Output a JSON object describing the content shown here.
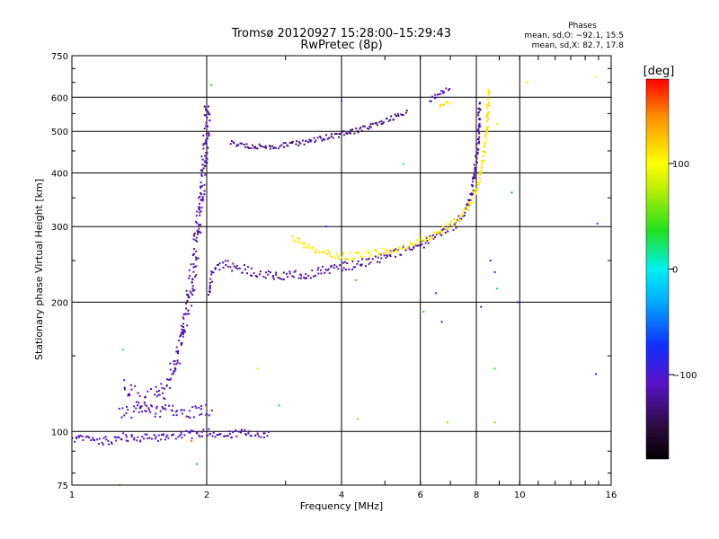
{
  "chart_data": {
    "type": "scatter",
    "title": "Tromsø 20120927 15:28:00–15:29:43",
    "subtitle": "RwPretec (8p)",
    "xlabel": "Frequency [MHz]",
    "ylabel": "Stationary phase Virtual Height [km]",
    "x_scale": "log",
    "y_scale": "log",
    "xlim": [
      1,
      16
    ],
    "ylim": [
      75,
      750
    ],
    "x_ticks": [
      1,
      2,
      4,
      6,
      8,
      10,
      16
    ],
    "x_tick_labels": [
      "1",
      "2",
      "4",
      "6",
      "8",
      "10",
      "16"
    ],
    "y_ticks": [
      75,
      100,
      200,
      300,
      400,
      500,
      600,
      750
    ],
    "y_tick_labels": [
      "75",
      "100",
      "200",
      "300",
      "400",
      "500",
      "600",
      "750"
    ],
    "grid": true,
    "stats": {
      "heading": "Phases",
      "line_o": "mean, sd,O: −92.1, 15.5",
      "line_x": "mean, sd,X:  82.7, 17.8"
    },
    "colorbar": {
      "label": "[deg]",
      "min": -180,
      "max": 180,
      "ticks": [
        100,
        0,
        -100
      ],
      "tick_labels": [
        "100",
        "0",
        "−100"
      ]
    },
    "series": [
      {
        "trace": [
          [
            1.0,
            96
          ],
          [
            1.1,
            96
          ],
          [
            1.2,
            95
          ],
          [
            1.3,
            97
          ],
          [
            1.4,
            96
          ],
          [
            1.5,
            97
          ],
          [
            1.6,
            97
          ],
          [
            1.7,
            98
          ],
          [
            1.8,
            99
          ],
          [
            1.9,
            98
          ],
          [
            2.0,
            100
          ],
          [
            2.1,
            99
          ],
          [
            2.2,
            98
          ],
          [
            2.4,
            99
          ],
          [
            2.6,
            98
          ],
          [
            2.75,
            99
          ]
        ],
        "phase": -105,
        "spread": 0.02
      },
      {
        "trace": [
          [
            1.28,
            110
          ],
          [
            1.4,
            112
          ],
          [
            1.55,
            111
          ],
          [
            1.7,
            112
          ],
          [
            1.85,
            111
          ],
          [
            1.95,
            113
          ],
          [
            2.05,
            112
          ]
        ],
        "phase": -100,
        "spread": 0.03
      },
      {
        "trace": [
          [
            1.3,
            127
          ],
          [
            1.38,
            121
          ],
          [
            1.45,
            118
          ],
          [
            1.52,
            119
          ],
          [
            1.6,
            124
          ],
          [
            1.67,
            135
          ],
          [
            1.72,
            150
          ],
          [
            1.78,
            175
          ],
          [
            1.83,
            205
          ],
          [
            1.87,
            240
          ],
          [
            1.91,
            290
          ],
          [
            1.94,
            340
          ],
          [
            1.97,
            400
          ],
          [
            1.99,
            460
          ],
          [
            2.0,
            510
          ],
          [
            2.01,
            580
          ]
        ],
        "phase": -115,
        "spread": 0.05
      },
      {
        "trace": [
          [
            2.02,
            210
          ],
          [
            2.05,
            230
          ],
          [
            2.1,
            240
          ],
          [
            2.2,
            245
          ],
          [
            2.3,
            242
          ],
          [
            2.5,
            236
          ],
          [
            2.8,
            232
          ],
          [
            3.0,
            230
          ],
          [
            3.3,
            232
          ],
          [
            3.6,
            236
          ],
          [
            4.0,
            242
          ],
          [
            4.4,
            246
          ],
          [
            4.8,
            252
          ],
          [
            5.2,
            258
          ],
          [
            5.6,
            265
          ],
          [
            6.0,
            272
          ],
          [
            6.4,
            280
          ],
          [
            6.8,
            290
          ],
          [
            7.2,
            305
          ],
          [
            7.5,
            320
          ],
          [
            7.7,
            340
          ],
          [
            7.85,
            370
          ],
          [
            7.95,
            410
          ],
          [
            8.05,
            460
          ],
          [
            8.12,
            520
          ],
          [
            8.15,
            590
          ]
        ],
        "phase": -118,
        "spread": 0.022
      },
      {
        "trace": [
          [
            3.1,
            285
          ],
          [
            3.3,
            272
          ],
          [
            3.5,
            262
          ],
          [
            3.8,
            258
          ],
          [
            4.2,
            256
          ],
          [
            4.7,
            260
          ],
          [
            5.2,
            265
          ],
          [
            5.8,
            273
          ],
          [
            6.3,
            283
          ],
          [
            6.8,
            296
          ],
          [
            7.3,
            312
          ],
          [
            7.7,
            335
          ],
          [
            8.0,
            365
          ],
          [
            8.2,
            400
          ],
          [
            8.35,
            450
          ],
          [
            8.45,
            510
          ],
          [
            8.5,
            580
          ],
          [
            8.55,
            630
          ]
        ],
        "phase": 108,
        "spread": 0.018
      },
      {
        "trace": [
          [
            2.25,
            470
          ],
          [
            2.5,
            462
          ],
          [
            2.8,
            460
          ],
          [
            3.1,
            466
          ],
          [
            3.4,
            475
          ],
          [
            3.8,
            487
          ],
          [
            4.2,
            498
          ],
          [
            4.6,
            512
          ],
          [
            5.0,
            528
          ],
          [
            5.4,
            548
          ],
          [
            5.6,
            556
          ]
        ],
        "phase": -128,
        "spread": 0.012
      },
      {
        "trace": [
          [
            6.3,
            590
          ],
          [
            6.5,
            605
          ],
          [
            6.8,
            620
          ],
          [
            7.0,
            630
          ]
        ],
        "phase": -105,
        "spread": 0.015
      },
      {
        "trace": [
          [
            6.6,
            575
          ],
          [
            6.8,
            580
          ],
          [
            7.0,
            585
          ]
        ],
        "phase": 110,
        "spread": 0.012
      }
    ],
    "outliers": [
      [
        1.3,
        155,
        30
      ],
      [
        1.28,
        75,
        60
      ],
      [
        1.85,
        95,
        150
      ],
      [
        1.9,
        84,
        -30
      ],
      [
        2.05,
        640,
        40
      ],
      [
        2.6,
        140,
        90
      ],
      [
        2.9,
        115,
        30
      ],
      [
        3.7,
        300,
        -100
      ],
      [
        4.0,
        590,
        -60
      ],
      [
        4.3,
        225,
        40
      ],
      [
        4.35,
        107,
        60
      ],
      [
        5.5,
        420,
        10
      ],
      [
        6.1,
        190,
        40
      ],
      [
        6.5,
        210,
        -90
      ],
      [
        6.7,
        180,
        -110
      ],
      [
        6.9,
        105,
        60
      ],
      [
        8.2,
        195,
        -120
      ],
      [
        8.6,
        250,
        -100
      ],
      [
        8.8,
        235,
        -80
      ],
      [
        8.9,
        215,
        30
      ],
      [
        8.8,
        140,
        40
      ],
      [
        8.8,
        105,
        60
      ],
      [
        9.6,
        360,
        -40
      ],
      [
        9.9,
        200,
        -80
      ],
      [
        10.4,
        650,
        110
      ],
      [
        14.8,
        670,
        100
      ],
      [
        14.9,
        305,
        -60
      ],
      [
        14.8,
        136,
        -70
      ],
      [
        8.9,
        520,
        90
      ]
    ]
  }
}
